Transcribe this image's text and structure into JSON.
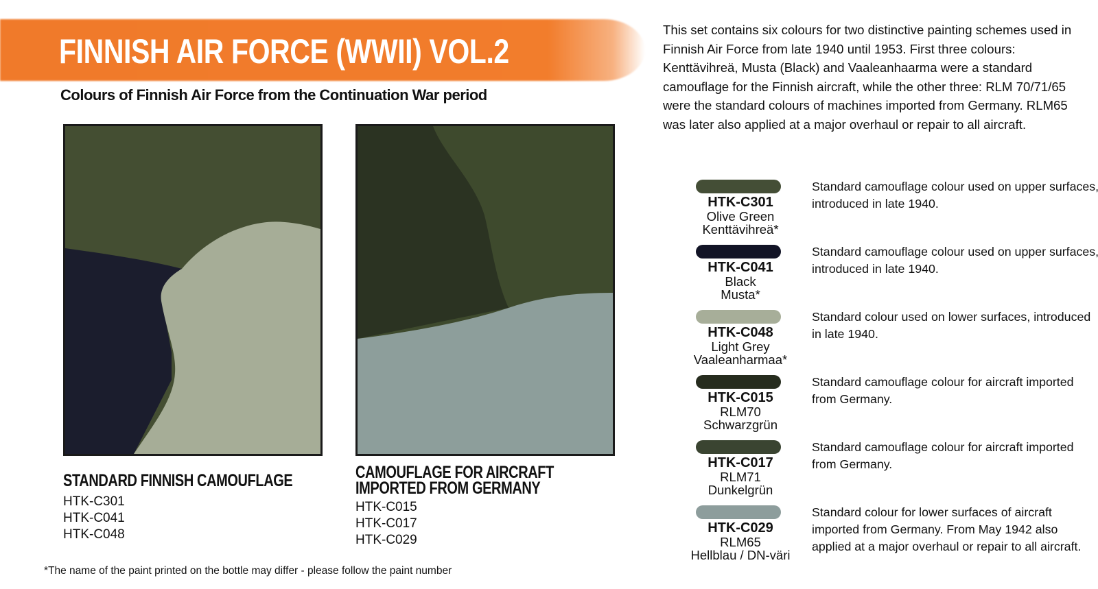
{
  "header": {
    "title": "FINNISH AIR FORCE (WWII) VOL.2",
    "subtitle": "Colours of  Finnish Air Force from the Continuation War period"
  },
  "intro": "This set contains six colours for two distinctive painting schemes used in Finnish Air Force from late 1940 until 1953. First three colours: Kenttävihreä, Musta (Black) and Vaaleanhaarma were a standard camouflage for the Finnish aircraft, while the other three: RLM 70/71/65 were the standard colours of machines imported from Germany. RLM65 was later also applied at a major overhaul or repair to all aircraft.",
  "schemes": [
    {
      "caption": "STANDARD FINNISH CAMOUFLAGE",
      "codes": [
        "HTK-C301",
        "HTK-C041",
        "HTK-C048"
      ],
      "colors": {
        "top": "#444e32",
        "left": "#1b1d2d",
        "right": "#a6ad97"
      }
    },
    {
      "caption": "CAMOUFLAGE FOR AIRCRAFT IMPORTED FROM GERMANY",
      "codes": [
        "HTK-C015",
        "HTK-C017",
        "HTK-C029"
      ],
      "colors": {
        "left": "#2b3322",
        "right": "#3e4a2d",
        "bottom": "#8d9e9b"
      }
    }
  ],
  "swatches": [
    {
      "code": "HTK-C301",
      "name": "Olive Green",
      "alt": "Kenttävihreä*",
      "color": "#444e36",
      "desc": "Standard camouflage colour used on upper surfaces, introduced in late 1940."
    },
    {
      "code": "HTK-C041",
      "name": "Black",
      "alt": "Musta*",
      "color": "#121426",
      "desc": "Standard camouflage colour used on upper surfaces, introduced in late 1940."
    },
    {
      "code": "HTK-C048",
      "name": "Light Grey",
      "alt": "Vaaleanharmaa*",
      "color": "#a7ae99",
      "desc": "Standard colour used on lower surfaces, introduced in late 1940."
    },
    {
      "code": "HTK-C015",
      "name": "RLM70",
      "alt": "Schwarzgrün",
      "color": "#262c1e",
      "desc": "Standard camouflage colour for aircraft imported from Germany."
    },
    {
      "code": "HTK-C017",
      "name": "RLM71",
      "alt": "Dunkelgrün",
      "color": "#3a4431",
      "desc": "Standard camouflage colour for aircraft imported from Germany."
    },
    {
      "code": "HTK-C029",
      "name": "RLM65",
      "alt": "Hellblau / DN-väri",
      "color": "#8d9d9c",
      "desc": "Standard colour for lower surfaces of aircraft imported from Germany. From May 1942 also applied at a major overhaul or repair to all aircraft."
    }
  ],
  "footnote": "*The name of the paint printed on the bottle may differ - please follow the paint number"
}
